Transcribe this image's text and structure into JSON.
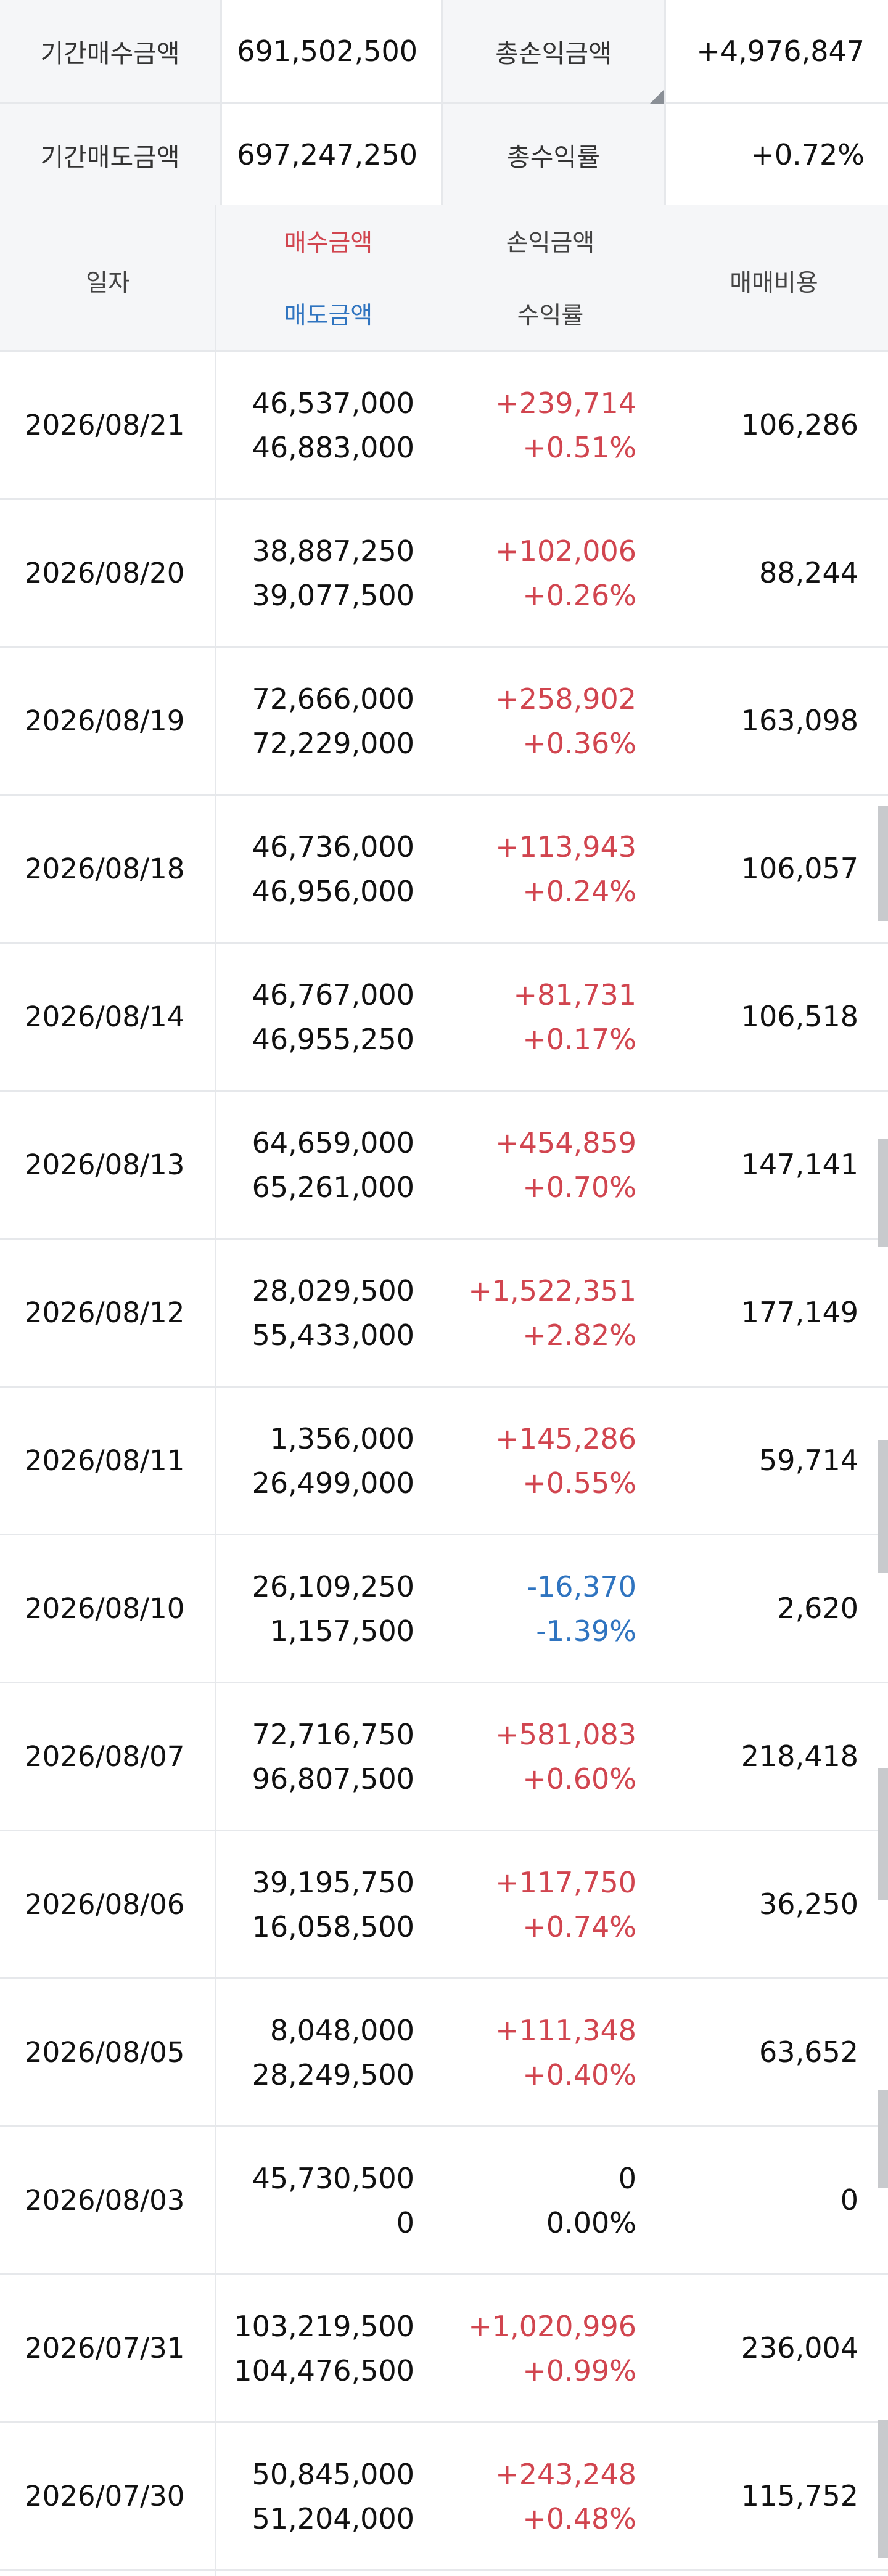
{
  "summary": {
    "buy_label": "기간매수금액",
    "buy_value": "691,502,500",
    "total_pl_label": "총손익금액",
    "total_pl_value": "+4,976,847",
    "sell_label": "기간매도금액",
    "sell_value": "697,247,250",
    "total_rate_label": "총수익률",
    "total_rate_value": "+0.72%"
  },
  "header": {
    "date": "일자",
    "buy_amount": "매수금액",
    "sell_amount": "매도금액",
    "pl_amount": "손익금액",
    "rate": "수익률",
    "fee": "매매비용"
  },
  "rows": [
    {
      "date": "2026/08/21",
      "buy": "46,537,000",
      "sell": "46,883,000",
      "pl": "+239,714",
      "rate": "+0.51%",
      "fee": "106,286"
    },
    {
      "date": "2026/08/20",
      "buy": "38,887,250",
      "sell": "39,077,500",
      "pl": "+102,006",
      "rate": "+0.26%",
      "fee": "88,244"
    },
    {
      "date": "2026/08/19",
      "buy": "72,666,000",
      "sell": "72,229,000",
      "pl": "+258,902",
      "rate": "+0.36%",
      "fee": "163,098"
    },
    {
      "date": "2026/08/18",
      "buy": "46,736,000",
      "sell": "46,956,000",
      "pl": "+113,943",
      "rate": "+0.24%",
      "fee": "106,057"
    },
    {
      "date": "2026/08/14",
      "buy": "46,767,000",
      "sell": "46,955,250",
      "pl": "+81,731",
      "rate": "+0.17%",
      "fee": "106,518"
    },
    {
      "date": "2026/08/13",
      "buy": "64,659,000",
      "sell": "65,261,000",
      "pl": "+454,859",
      "rate": "+0.70%",
      "fee": "147,141"
    },
    {
      "date": "2026/08/12",
      "buy": "28,029,500",
      "sell": "55,433,000",
      "pl": "+1,522,351",
      "rate": "+2.82%",
      "fee": "177,149"
    },
    {
      "date": "2026/08/11",
      "buy": "1,356,000",
      "sell": "26,499,000",
      "pl": "+145,286",
      "rate": "+0.55%",
      "fee": "59,714"
    },
    {
      "date": "2026/08/10",
      "buy": "26,109,250",
      "sell": "1,157,500",
      "pl": "-16,370",
      "rate": "-1.39%",
      "fee": "2,620"
    },
    {
      "date": "2026/08/07",
      "buy": "72,716,750",
      "sell": "96,807,500",
      "pl": "+581,083",
      "rate": "+0.60%",
      "fee": "218,418"
    },
    {
      "date": "2026/08/06",
      "buy": "39,195,750",
      "sell": "16,058,500",
      "pl": "+117,750",
      "rate": "+0.74%",
      "fee": "36,250"
    },
    {
      "date": "2026/08/05",
      "buy": "8,048,000",
      "sell": "28,249,500",
      "pl": "+111,348",
      "rate": "+0.40%",
      "fee": "63,652"
    },
    {
      "date": "2026/08/03",
      "buy": "45,730,500",
      "sell": "0",
      "pl": "0",
      "rate": "0.00%",
      "fee": "0"
    },
    {
      "date": "2026/07/31",
      "buy": "103,219,500",
      "sell": "104,476,500",
      "pl": "+1,020,996",
      "rate": "+0.99%",
      "fee": "236,004"
    },
    {
      "date": "2026/07/30",
      "buy": "50,845,000",
      "sell": "51,204,000",
      "pl": "+243,248",
      "rate": "+0.48%",
      "fee": "115,752"
    }
  ],
  "colors": {
    "positive": "#d1454f",
    "negative": "#2f74c0",
    "label_bg": "#f5f6f8",
    "border": "#e6e8eb"
  }
}
